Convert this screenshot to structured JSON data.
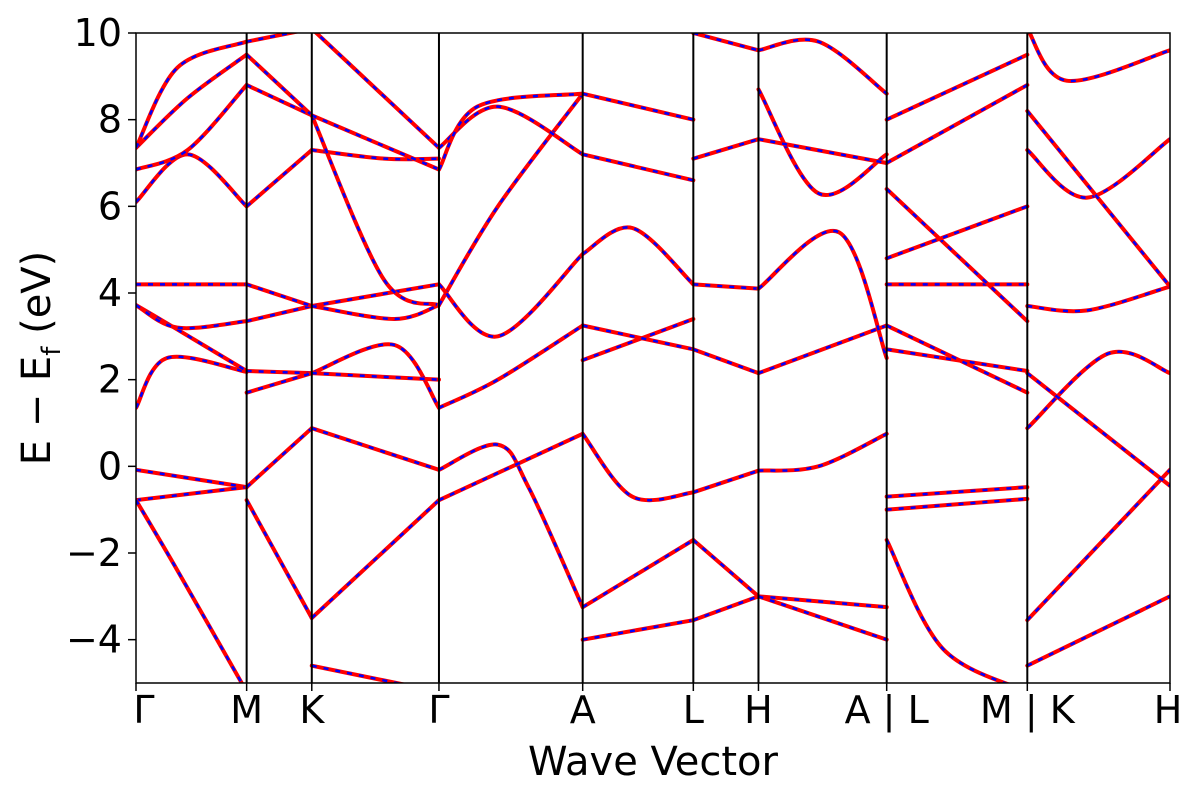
{
  "chart_data": {
    "type": "line",
    "xlabel": "Wave Vector",
    "ylabel_main": "E − E",
    "ylabel_sub": "f",
    "ylabel_unit": " (eV)",
    "ylim": [
      -5,
      10
    ],
    "yticks": [
      {
        "value": -4,
        "label": "−4"
      },
      {
        "value": -2,
        "label": "−2"
      },
      {
        "value": 0,
        "label": "0"
      },
      {
        "value": 2,
        "label": "2"
      },
      {
        "value": 4,
        "label": "4"
      },
      {
        "value": 6,
        "label": "6"
      },
      {
        "value": 8,
        "label": "8"
      },
      {
        "value": 10,
        "label": "10"
      }
    ],
    "xlim": [
      0,
      1
    ],
    "xticks": [
      {
        "value": 0.0,
        "label": "Γ"
      },
      {
        "value": 0.107,
        "label": "M"
      },
      {
        "value": 0.17,
        "label": "K"
      },
      {
        "value": 0.293,
        "label": "Γ"
      },
      {
        "value": 0.432,
        "label": "A"
      },
      {
        "value": 0.539,
        "label": "L"
      },
      {
        "value": 0.602,
        "label": "H"
      },
      {
        "value": 0.726,
        "label": "A | L"
      },
      {
        "value": 0.862,
        "label": "M | K"
      },
      {
        "value": 1.0,
        "label": "H"
      }
    ],
    "line_colors": [
      "#ff0000",
      "#0000ff"
    ],
    "grid": false,
    "series": [
      {
        "x": [
          0,
          0.107
        ],
        "y": [
          -0.08,
          -0.48
        ]
      },
      {
        "x": [
          0,
          0.107
        ],
        "y": [
          -0.78,
          -0.48
        ]
      },
      {
        "x": [
          0,
          0.04,
          0.107
        ],
        "y": [
          -0.78,
          -2.4,
          -5.2
        ]
      },
      {
        "x": [
          0,
          0.03,
          0.107
        ],
        "y": [
          1.35,
          2.5,
          2.18
        ]
      },
      {
        "x": [
          0,
          0.03,
          0.107
        ],
        "y": [
          3.72,
          3.3,
          2.2
        ]
      },
      {
        "x": [
          0,
          0.107
        ],
        "y": [
          4.2,
          4.2
        ]
      },
      {
        "x": [
          0,
          0.04,
          0.107
        ],
        "y": [
          3.72,
          3.2,
          3.35
        ]
      },
      {
        "x": [
          0,
          0.05,
          0.107
        ],
        "y": [
          6.1,
          7.2,
          6.0
        ]
      },
      {
        "x": [
          0,
          0.05,
          0.107
        ],
        "y": [
          6.85,
          7.3,
          8.8
        ]
      },
      {
        "x": [
          0,
          0.05,
          0.107
        ],
        "y": [
          7.35,
          8.5,
          9.5
        ]
      },
      {
        "x": [
          0,
          0.04,
          0.107
        ],
        "y": [
          7.35,
          9.2,
          9.8
        ]
      },
      {
        "x": [
          0.107,
          0.17
        ],
        "y": [
          -0.48,
          0.88
        ]
      },
      {
        "x": [
          0.107,
          0.17
        ],
        "y": [
          -0.78,
          -3.5
        ]
      },
      {
        "x": [
          0.107,
          0.17
        ],
        "y": [
          2.2,
          2.15
        ]
      },
      {
        "x": [
          0.107,
          0.17
        ],
        "y": [
          1.7,
          2.15
        ]
      },
      {
        "x": [
          0.107,
          0.17
        ],
        "y": [
          3.35,
          3.7
        ]
      },
      {
        "x": [
          0.107,
          0.17
        ],
        "y": [
          4.2,
          3.7
        ]
      },
      {
        "x": [
          0.107,
          0.17
        ],
        "y": [
          6.0,
          7.3
        ]
      },
      {
        "x": [
          0.107,
          0.17
        ],
        "y": [
          8.8,
          8.1
        ]
      },
      {
        "x": [
          0.107,
          0.17
        ],
        "y": [
          9.5,
          8.1
        ]
      },
      {
        "x": [
          0.107,
          0.17
        ],
        "y": [
          9.8,
          10.1
        ]
      },
      {
        "x": [
          0.17,
          0.293
        ],
        "y": [
          0.88,
          -0.08
        ]
      },
      {
        "x": [
          0.17,
          0.293
        ],
        "y": [
          -3.5,
          -0.78
        ]
      },
      {
        "x": [
          0.17,
          0.293
        ],
        "y": [
          -4.6,
          -5.2
        ]
      },
      {
        "x": [
          0.17,
          0.25,
          0.293
        ],
        "y": [
          2.15,
          2.8,
          1.35
        ]
      },
      {
        "x": [
          0.17,
          0.293
        ],
        "y": [
          2.15,
          2.0
        ]
      },
      {
        "x": [
          0.17,
          0.293
        ],
        "y": [
          3.7,
          4.2
        ]
      },
      {
        "x": [
          0.17,
          0.25,
          0.293
        ],
        "y": [
          3.7,
          3.4,
          3.72
        ]
      },
      {
        "x": [
          0.17,
          0.24,
          0.293
        ],
        "y": [
          7.3,
          7.1,
          7.1
        ]
      },
      {
        "x": [
          0.17,
          0.24,
          0.293
        ],
        "y": [
          8.1,
          4.3,
          3.72
        ]
      },
      {
        "x": [
          0.17,
          0.293
        ],
        "y": [
          8.1,
          6.85
        ]
      },
      {
        "x": [
          0.17,
          0.293
        ],
        "y": [
          10.1,
          7.35
        ]
      },
      {
        "x": [
          0.293,
          0.35,
          0.38,
          0.432
        ],
        "y": [
          -0.08,
          0.5,
          -0.5,
          -3.25
        ]
      },
      {
        "x": [
          0.293,
          0.432
        ],
        "y": [
          -0.78,
          0.75
        ]
      },
      {
        "x": [
          0.293,
          0.35,
          0.432
        ],
        "y": [
          1.35,
          2.0,
          3.25
        ]
      },
      {
        "x": [
          0.293,
          0.35,
          0.432
        ],
        "y": [
          3.72,
          6.0,
          8.6
        ]
      },
      {
        "x": [
          0.293,
          0.35,
          0.432
        ],
        "y": [
          4.2,
          3.0,
          4.9
        ]
      },
      {
        "x": [
          0.293,
          0.35,
          0.432
        ],
        "y": [
          7.35,
          8.3,
          7.2
        ]
      },
      {
        "x": [
          0.293,
          0.33,
          0.432
        ],
        "y": [
          6.85,
          8.3,
          8.6
        ]
      },
      {
        "x": [
          0.432,
          0.539
        ],
        "y": [
          -3.25,
          -1.7
        ]
      },
      {
        "x": [
          0.432,
          0.539
        ],
        "y": [
          -4.0,
          -3.55
        ]
      },
      {
        "x": [
          0.432,
          0.48,
          0.539
        ],
        "y": [
          0.75,
          -0.7,
          -0.6
        ]
      },
      {
        "x": [
          0.432,
          0.539
        ],
        "y": [
          2.45,
          3.4
        ]
      },
      {
        "x": [
          0.432,
          0.539
        ],
        "y": [
          3.25,
          2.7
        ]
      },
      {
        "x": [
          0.432,
          0.48,
          0.539
        ],
        "y": [
          4.9,
          5.5,
          4.2
        ]
      },
      {
        "x": [
          0.432,
          0.539
        ],
        "y": [
          7.2,
          6.6
        ]
      },
      {
        "x": [
          0.432,
          0.539
        ],
        "y": [
          8.6,
          8.0
        ]
      },
      {
        "x": [
          0.539,
          0.602
        ],
        "y": [
          -0.6,
          -0.1
        ]
      },
      {
        "x": [
          0.539,
          0.602
        ],
        "y": [
          -1.7,
          -3.0
        ]
      },
      {
        "x": [
          0.539,
          0.602
        ],
        "y": [
          -3.55,
          -3.0
        ]
      },
      {
        "x": [
          0.539,
          0.602
        ],
        "y": [
          2.7,
          2.15
        ]
      },
      {
        "x": [
          0.539,
          0.602
        ],
        "y": [
          4.2,
          4.1
        ]
      },
      {
        "x": [
          0.539,
          0.602
        ],
        "y": [
          7.1,
          7.55
        ]
      },
      {
        "x": [
          0.539,
          0.602
        ],
        "y": [
          10.0,
          9.6
        ]
      },
      {
        "x": [
          0.602,
          0.66,
          0.726
        ],
        "y": [
          -0.1,
          0.0,
          0.75
        ]
      },
      {
        "x": [
          0.602,
          0.726
        ],
        "y": [
          -3.0,
          -3.25
        ]
      },
      {
        "x": [
          0.602,
          0.726
        ],
        "y": [
          -3.0,
          -4.0
        ]
      },
      {
        "x": [
          0.602,
          0.726
        ],
        "y": [
          2.15,
          3.25
        ]
      },
      {
        "x": [
          0.602,
          0.68,
          0.726
        ],
        "y": [
          4.1,
          5.4,
          2.5
        ]
      },
      {
        "x": [
          0.602,
          0.66,
          0.726
        ],
        "y": [
          8.7,
          6.3,
          7.2
        ]
      },
      {
        "x": [
          0.602,
          0.726
        ],
        "y": [
          7.55,
          7.0
        ]
      },
      {
        "x": [
          0.602,
          0.66,
          0.726
        ],
        "y": [
          9.6,
          9.8,
          8.6
        ]
      },
      {
        "x": [
          0.726,
          0.862
        ],
        "y": [
          -0.7,
          -0.48
        ]
      },
      {
        "x": [
          0.726,
          0.862
        ],
        "y": [
          -1.0,
          -0.75
        ]
      },
      {
        "x": [
          0.726,
          0.78,
          0.862
        ],
        "y": [
          -1.7,
          -4.2,
          -5.2
        ]
      },
      {
        "x": [
          0.726,
          0.862
        ],
        "y": [
          2.7,
          2.2
        ]
      },
      {
        "x": [
          0.726,
          0.862
        ],
        "y": [
          3.25,
          1.7
        ]
      },
      {
        "x": [
          0.726,
          0.862
        ],
        "y": [
          4.2,
          4.2
        ]
      },
      {
        "x": [
          0.726,
          0.862
        ],
        "y": [
          6.4,
          3.35
        ]
      },
      {
        "x": [
          0.726,
          0.862
        ],
        "y": [
          4.8,
          6.0
        ]
      },
      {
        "x": [
          0.726,
          0.862
        ],
        "y": [
          7.0,
          8.8
        ]
      },
      {
        "x": [
          0.726,
          0.862
        ],
        "y": [
          8.0,
          9.5
        ]
      },
      {
        "x": [
          0.862,
          0.94,
          1.0
        ],
        "y": [
          0.88,
          2.6,
          2.15
        ]
      },
      {
        "x": [
          0.862,
          1.0
        ],
        "y": [
          -3.55,
          -0.08
        ]
      },
      {
        "x": [
          0.862,
          1.0
        ],
        "y": [
          -4.6,
          -3.0
        ]
      },
      {
        "x": [
          0.862,
          1.0
        ],
        "y": [
          2.15,
          -0.45
        ]
      },
      {
        "x": [
          0.862,
          0.92,
          1.0
        ],
        "y": [
          3.7,
          3.6,
          4.15
        ]
      },
      {
        "x": [
          0.862,
          0.92,
          1.0
        ],
        "y": [
          7.3,
          6.2,
          7.55
        ]
      },
      {
        "x": [
          0.862,
          1.0
        ],
        "y": [
          8.2,
          4.15
        ]
      },
      {
        "x": [
          0.862,
          0.9,
          1.0
        ],
        "y": [
          10.1,
          8.9,
          9.6
        ]
      }
    ]
  }
}
